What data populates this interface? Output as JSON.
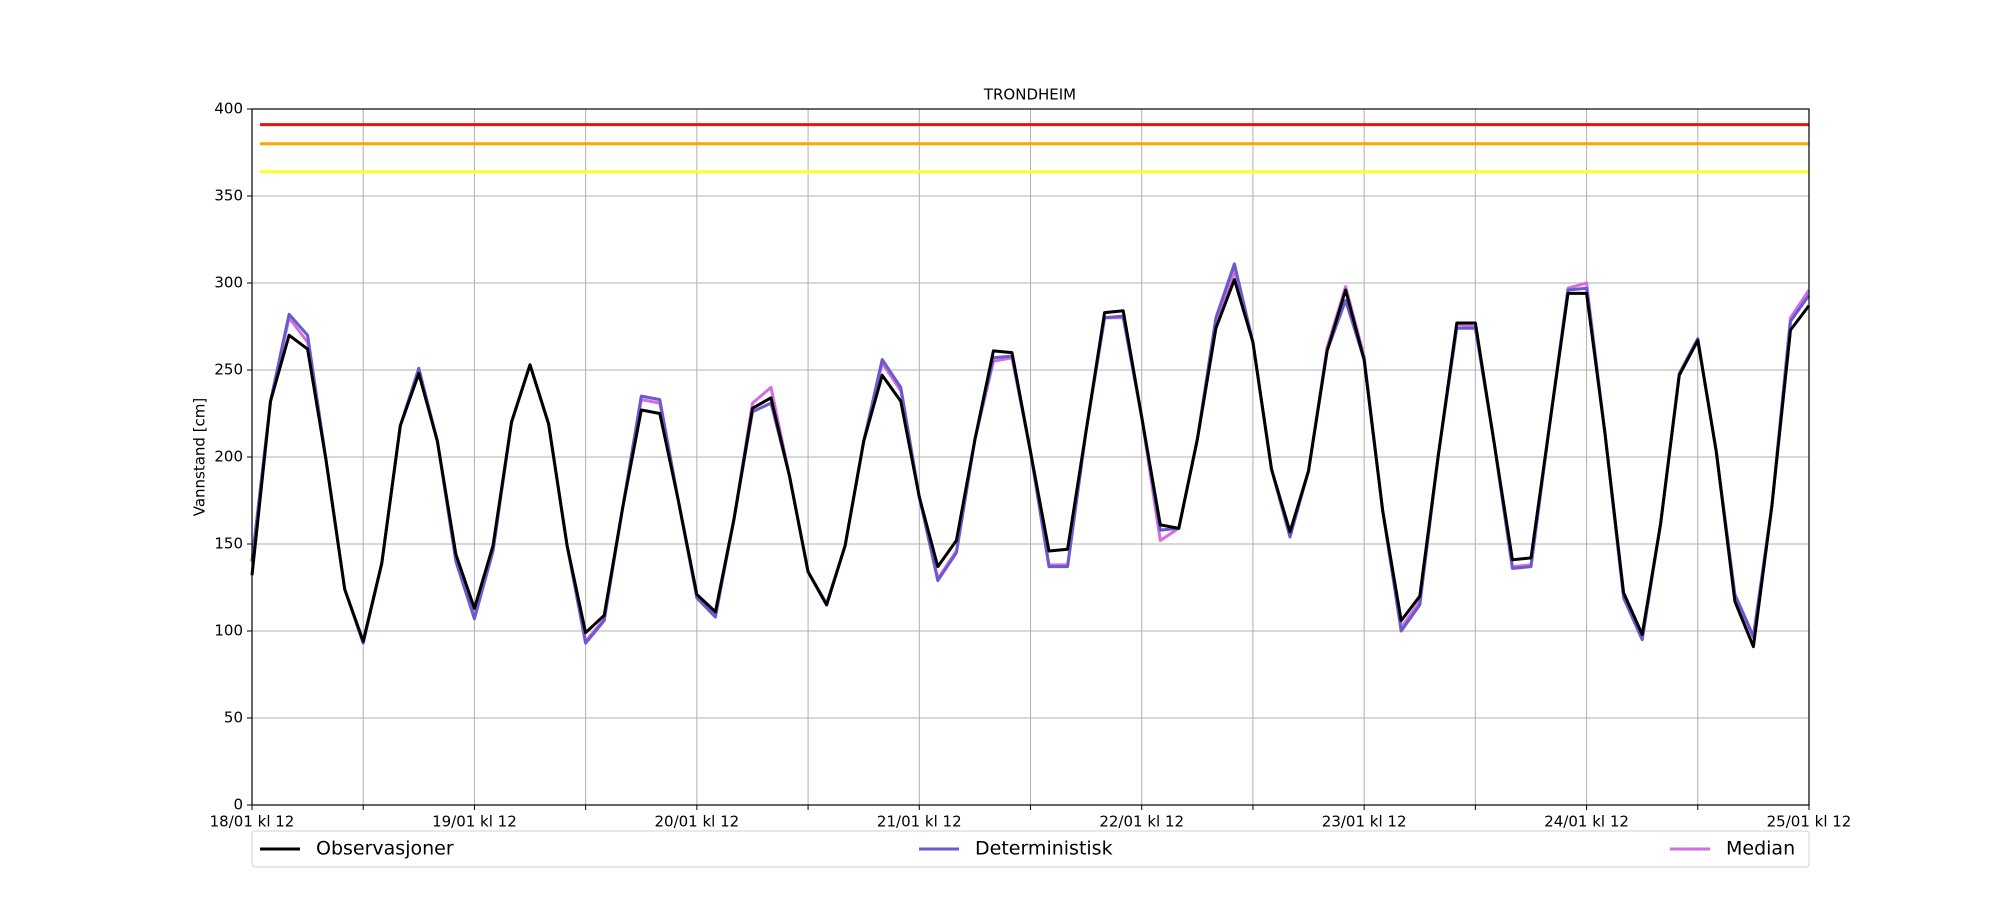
{
  "chart_data": {
    "type": "line",
    "title": "TRONDHEIM",
    "y_label": "Vannstand [cm]",
    "categories": [
      "18/01 kl 12",
      null,
      null,
      null,
      null,
      null,
      null,
      null,
      null,
      null,
      null,
      null,
      "19/01 kl 12",
      null,
      null,
      null,
      null,
      null,
      null,
      null,
      null,
      null,
      null,
      null,
      "20/01 kl 12",
      null,
      null,
      null,
      null,
      null,
      null,
      null,
      null,
      null,
      null,
      null,
      "21/01 kl 12",
      null,
      null,
      null,
      null,
      null,
      null,
      null,
      null,
      null,
      null,
      null,
      "22/01 kl 12",
      null,
      null,
      null,
      null,
      null,
      null,
      null,
      null,
      null,
      null,
      null,
      "23/01 kl 12",
      null,
      null,
      null,
      null,
      null,
      null,
      null,
      null,
      null,
      null,
      null,
      "24/01 kl 12",
      null,
      null,
      null,
      null,
      null,
      null,
      null,
      null,
      null,
      null,
      null,
      "25/01 kl 12"
    ],
    "series": [
      {
        "name": "Observasjoner",
        "color": "#000000",
        "values": [
          132,
          232,
          270,
          262,
          198,
          124,
          94,
          139,
          218,
          248,
          209,
          144,
          113,
          149,
          220,
          253,
          219,
          149,
          99,
          109,
          171,
          227,
          225,
          175,
          121,
          111,
          164,
          228,
          234,
          189,
          134,
          115,
          149,
          209,
          247,
          232,
          177,
          137,
          152,
          210,
          261,
          260,
          203,
          146,
          147,
          215,
          283,
          284,
          223,
          161,
          159,
          210,
          274,
          302,
          266,
          193,
          157,
          192,
          261,
          296,
          256,
          169,
          106,
          120,
          201,
          277,
          277,
          209,
          141,
          142,
          218,
          294,
          294,
          213,
          122,
          98,
          162,
          247,
          267,
          203,
          117,
          91,
          172,
          273,
          287
        ]
      },
      {
        "name": "Deterministisk",
        "color": "#6a5acd",
        "values": [
          140,
          232,
          282,
          270,
          198,
          124,
          93,
          139,
          218,
          251,
          209,
          140,
          107,
          146,
          220,
          253,
          219,
          149,
          93,
          106,
          171,
          235,
          233,
          175,
          119,
          108,
          164,
          226,
          231,
          189,
          134,
          115,
          149,
          209,
          256,
          240,
          177,
          129,
          145,
          210,
          257,
          258,
          203,
          137,
          137,
          215,
          280,
          281,
          223,
          158,
          159,
          210,
          280,
          311,
          266,
          193,
          154,
          192,
          261,
          290,
          256,
          169,
          100,
          115,
          201,
          274,
          274,
          209,
          136,
          137,
          218,
          296,
          297,
          213,
          119,
          95,
          162,
          248,
          268,
          203,
          121,
          97,
          172,
          278,
          293
        ]
      },
      {
        "name": "Median",
        "color": "#d36ee0",
        "values": [
          140,
          232,
          280,
          266,
          198,
          124,
          94,
          139,
          218,
          250,
          209,
          141,
          108,
          146,
          220,
          253,
          219,
          149,
          94,
          107,
          171,
          233,
          231,
          175,
          119,
          109,
          164,
          231,
          240,
          189,
          134,
          116,
          149,
          209,
          254,
          238,
          177,
          130,
          146,
          210,
          255,
          257,
          203,
          138,
          138,
          215,
          280,
          280,
          223,
          152,
          159,
          210,
          278,
          307,
          266,
          193,
          155,
          192,
          263,
          298,
          258,
          169,
          102,
          117,
          201,
          276,
          275,
          209,
          137,
          138,
          218,
          297,
          300,
          213,
          120,
          96,
          162,
          248,
          268,
          203,
          120,
          96,
          172,
          280,
          296
        ]
      }
    ],
    "hlines": [
      {
        "value": 391,
        "color": "#ee1111"
      },
      {
        "value": 380,
        "color": "#ffa500"
      },
      {
        "value": 364,
        "color": "#ffff22"
      }
    ],
    "ylim": [
      0,
      400
    ],
    "yticks": [
      0,
      50,
      100,
      150,
      200,
      250,
      300,
      350,
      400
    ],
    "grid": true,
    "legend": "bottom"
  }
}
